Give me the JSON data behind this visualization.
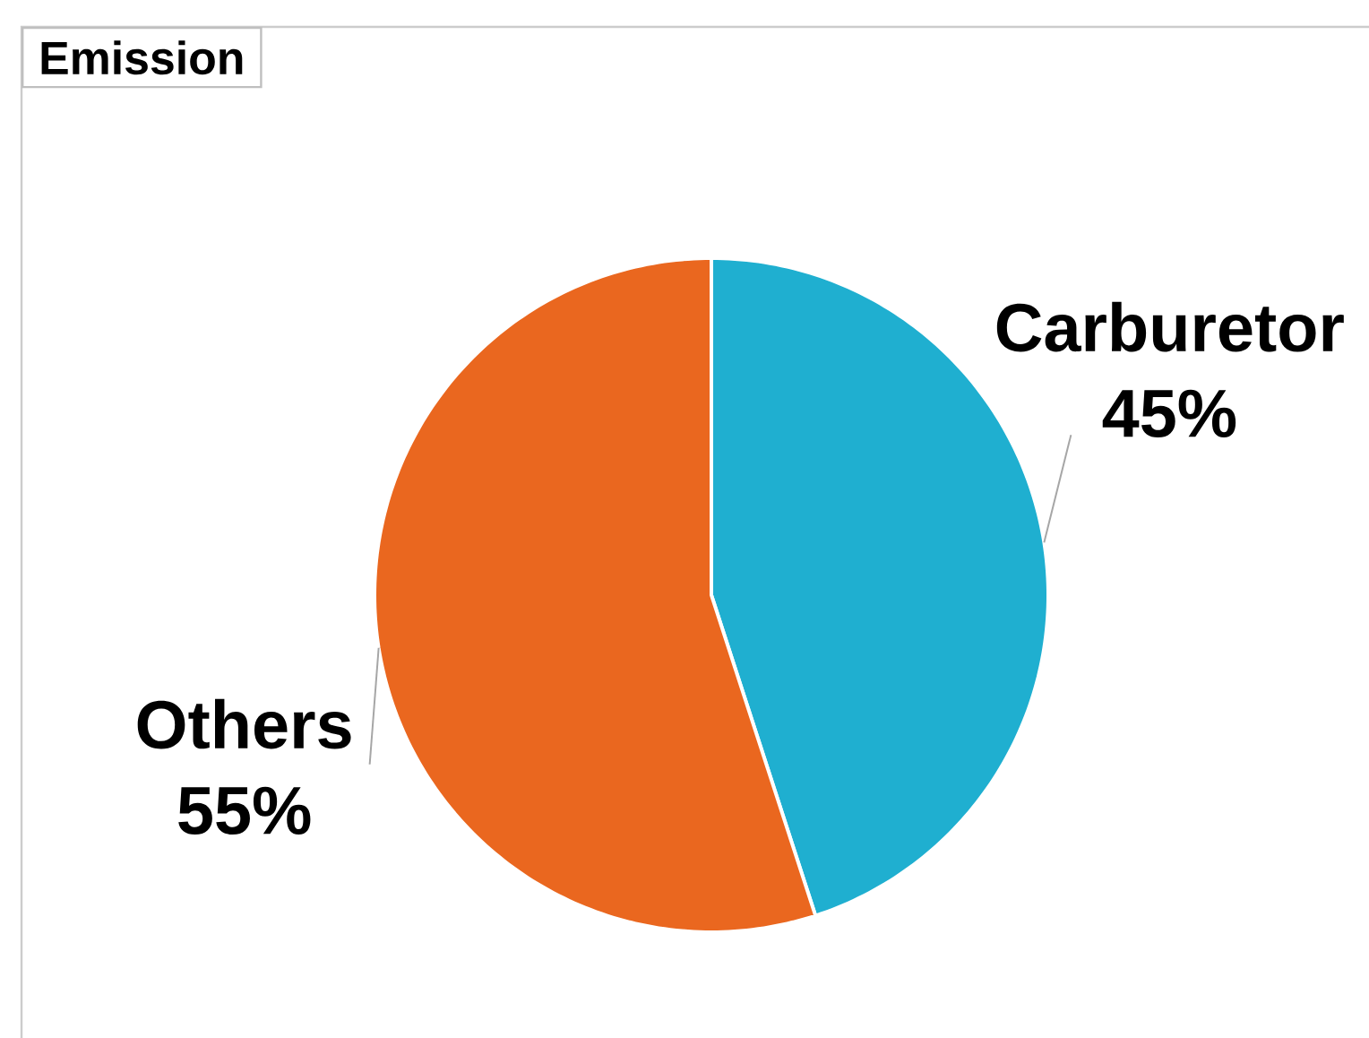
{
  "chart_data": {
    "type": "pie",
    "title": "Emission",
    "categories": [
      "Carburetor",
      "Others"
    ],
    "values": [
      45,
      55
    ],
    "value_labels": [
      "45%",
      "55%"
    ],
    "colors": [
      "#1fafd0",
      "#ea671f"
    ]
  }
}
